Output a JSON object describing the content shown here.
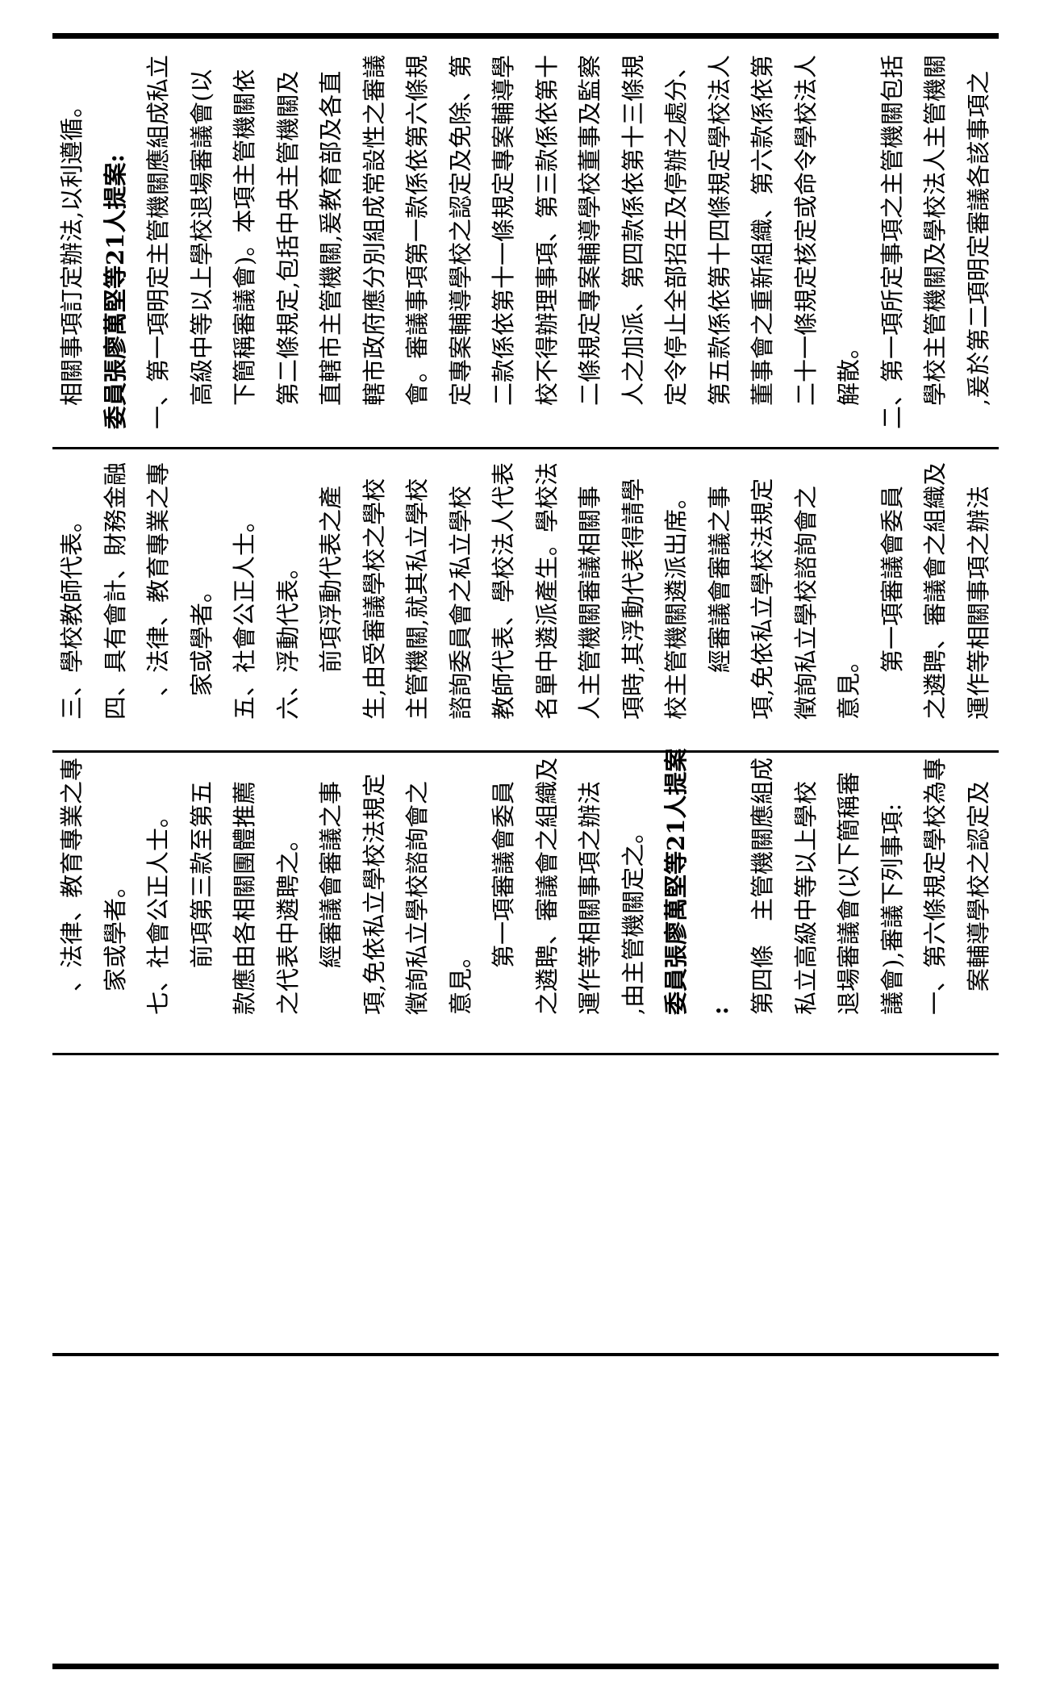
{
  "document": {
    "language": "zh-TW",
    "kind": "legislative bill comparison table page (rotated 90 degrees counter-clockwise)",
    "ink_color": "#000000",
    "background_color": "#ffffff"
  },
  "bands": [
    {
      "name": "column-1",
      "lines": [
        {
          "t": "相關事項訂定辦法,以利遵循。",
          "indent": 1,
          "bold": false
        },
        {
          "t": "委員張廖萬堅等21人提案:",
          "indent": 0,
          "bold": true
        },
        {
          "t": "一、第一項明定主管機關應組成私立",
          "indent": 0,
          "bold": false
        },
        {
          "t": "高級中等以上學校退場審議會(以",
          "indent": 1,
          "bold": false
        },
        {
          "t": "下簡稱審議會)。本項主管機關依",
          "indent": 1,
          "bold": false
        },
        {
          "t": "第二條規定,包括中央主管機關及",
          "indent": 1,
          "bold": false
        },
        {
          "t": "直轄市主管機關,爰教育部及各直",
          "indent": 1,
          "bold": false
        },
        {
          "t": "轄市政府應分別組成常設性之審議",
          "indent": 1,
          "bold": false
        },
        {
          "t": "會。審議事項第一款係依第六條規",
          "indent": 1,
          "bold": false
        },
        {
          "t": "定專案輔導學校之認定及免除、第",
          "indent": 1,
          "bold": false
        },
        {
          "t": "二款係依第十一條規定專案輔導學",
          "indent": 1,
          "bold": false
        },
        {
          "t": "校不得辦理事項、第三款係依第十",
          "indent": 1,
          "bold": false
        },
        {
          "t": "二條規定專案輔導學校董事及監察",
          "indent": 1,
          "bold": false
        },
        {
          "t": "人之加派、第四款係依第十三條規",
          "indent": 1,
          "bold": false
        },
        {
          "t": "定令停止全部招生及停辦之處分、",
          "indent": 1,
          "bold": false
        },
        {
          "t": "第五款係依第十四條規定學校法人",
          "indent": 1,
          "bold": false
        },
        {
          "t": "董事會之重新組織、第六款係依第",
          "indent": 1,
          "bold": false
        },
        {
          "t": "二十一條規定核定或命令學校法人",
          "indent": 1,
          "bold": false
        },
        {
          "t": "解散。",
          "indent": 1,
          "bold": false
        },
        {
          "t": "二、第一項所定事項之主管機關包括",
          "indent": 0,
          "bold": false
        },
        {
          "t": "學校主管機關及學校法人主管機關",
          "indent": 1,
          "bold": false
        },
        {
          "t": ",爰於第二項明定審議各該事項之",
          "indent": 1,
          "bold": false
        }
      ]
    },
    {
      "name": "column-2",
      "lines": [
        {
          "t": "三、學校教師代表。",
          "indent": 0,
          "bold": false
        },
        {
          "t": "四、具有會計、財務金融",
          "indent": 0,
          "bold": false
        },
        {
          "t": "、法律、教育專業之專",
          "indent": 1,
          "bold": false
        },
        {
          "t": "家或學者。",
          "indent": 1,
          "bold": false
        },
        {
          "t": "五、社會公正人士。",
          "indent": 0,
          "bold": false
        },
        {
          "t": "六、浮動代表。",
          "indent": 0,
          "bold": false
        },
        {
          "t": "前項浮動代表之產",
          "indent": 2,
          "bold": false
        },
        {
          "t": "生,由受審議學校之學校",
          "indent": 0,
          "bold": false
        },
        {
          "t": "主管機關,就其私立學校",
          "indent": 0,
          "bold": false
        },
        {
          "t": "諮詢委員會之私立學校",
          "indent": 0,
          "bold": false
        },
        {
          "t": "教師代表、學校法人代表",
          "indent": 0,
          "bold": false
        },
        {
          "t": "名單中遴派產生。學校法",
          "indent": 0,
          "bold": false
        },
        {
          "t": "人主管機關審議相關事",
          "indent": 0,
          "bold": false
        },
        {
          "t": "項時,其浮動代表得請學",
          "indent": 0,
          "bold": false
        },
        {
          "t": "校主管機關遴派出席。",
          "indent": 0,
          "bold": false
        },
        {
          "t": "經審議會審議之事",
          "indent": 2,
          "bold": false
        },
        {
          "t": "項,免依私立學校法規定",
          "indent": 0,
          "bold": false
        },
        {
          "t": "徵詢私立學校諮詢會之",
          "indent": 0,
          "bold": false
        },
        {
          "t": "意見。",
          "indent": 0,
          "bold": false
        },
        {
          "t": "第一項審議會委員",
          "indent": 2,
          "bold": false
        },
        {
          "t": "之遴聘、審議會之組織及",
          "indent": 0,
          "bold": false
        },
        {
          "t": "運作等相關事項之辦法",
          "indent": 0,
          "bold": false
        }
      ]
    },
    {
      "name": "column-3",
      "lines": [
        {
          "t": "、法律、教育專業之專",
          "indent": 1,
          "bold": false
        },
        {
          "t": "家或學者。",
          "indent": 1,
          "bold": false
        },
        {
          "t": "七、社會公正人士。",
          "indent": 0,
          "bold": false
        },
        {
          "t": "前項第三款至第五",
          "indent": 2,
          "bold": false
        },
        {
          "t": "款應由各相關團體推薦",
          "indent": 0,
          "bold": false
        },
        {
          "t": "之代表中遴聘之。",
          "indent": 0,
          "bold": false
        },
        {
          "t": "經審議會審議之事",
          "indent": 2,
          "bold": false
        },
        {
          "t": "項,免依私立學校法規定",
          "indent": 0,
          "bold": false
        },
        {
          "t": "徵詢私立學校諮詢會之",
          "indent": 0,
          "bold": false
        },
        {
          "t": "意見。",
          "indent": 0,
          "bold": false
        },
        {
          "t": "第一項審議會委員",
          "indent": 2,
          "bold": false
        },
        {
          "t": "之遴聘、審議會之組織及",
          "indent": 0,
          "bold": false
        },
        {
          "t": "運作等相關事項之辦法",
          "indent": 0,
          "bold": false
        },
        {
          "t": ",由主管機關定之。",
          "indent": 0,
          "bold": false
        },
        {
          "t": "委員張廖萬堅等21人提案",
          "indent": 0,
          "bold": true
        },
        {
          "t": ":",
          "indent": 0,
          "bold": true
        },
        {
          "t": "第四條　主管機關應組成",
          "indent": 0,
          "bold": false
        },
        {
          "t": "私立高級中等以上學校",
          "indent": 0,
          "bold": false
        },
        {
          "t": "退場審議會(以下簡稱審",
          "indent": 0,
          "bold": false
        },
        {
          "t": "議會),審議下列事項:",
          "indent": 0,
          "bold": false
        },
        {
          "t": "一、第六條規定學校為專",
          "indent": 0,
          "bold": false
        },
        {
          "t": "案輔導學校之認定及",
          "indent": 1,
          "bold": false
        }
      ]
    },
    {
      "name": "column-4-empty",
      "lines": []
    },
    {
      "name": "column-5-empty",
      "lines": []
    }
  ]
}
